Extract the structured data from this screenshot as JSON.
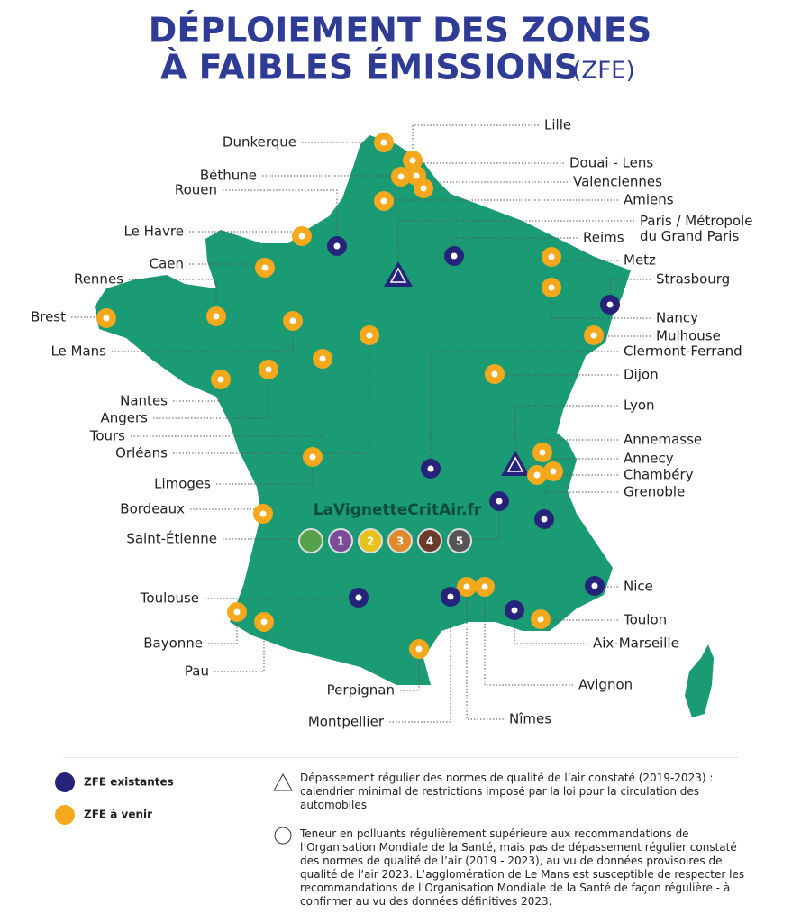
{
  "title": {
    "line1": "DÉPLOIEMENT DES ZONES",
    "line2": "À FAIBLES ÉMISSIONS",
    "suffix": "(ZFE)"
  },
  "cities": [
    "Dunkerque",
    "Lille",
    "Béthune",
    "Douai - Lens",
    "Valenciennes",
    "Rouen",
    "Amiens",
    [
      "Paris / Métropole",
      "du Grand Paris"
    ],
    "Le Havre",
    "Reims",
    "Metz",
    "Caen",
    "Rennes",
    "Strasbourg",
    "Brest",
    "Nancy",
    "Mulhouse",
    "Le Mans",
    "Clermont-Ferrand",
    "Dijon",
    "Nantes",
    "Lyon",
    "Angers",
    "Tours",
    "Annemasse",
    "Orléans",
    "Annecy",
    "Chambéry",
    "Limoges",
    "Grenoble",
    "Bordeaux",
    "Saint-Étienne",
    "Nice",
    "Toulouse",
    "Toulon",
    "Bayonne",
    "Aix-Marseille",
    "Pau",
    "Avignon",
    "Perpignan",
    "Nîmes",
    "Montpellier"
  ],
  "watermark": "LaVignetteCritAir.fr",
  "vignettes": [
    "1",
    "2",
    "3",
    "4",
    "5"
  ],
  "legend": {
    "existing": "ZFE existantes",
    "upcoming": "ZFE à venir",
    "triangle": "Dépassement régulier des normes de qualité de l’air constaté (2019-2023) : calendrier minimal de restrictions imposé par la loi pour la circulation des automobiles",
    "circle": "Teneur en polluants régulièrement supérieure aux recommandations de l’Organisation Mondiale de la Santé, mais pas de dépassement régulier constaté des normes de qualité de l’air (2019 - 2023), au vu de données provisoires de qualité de l’air 2023. L’agglomération de Le Mans est susceptible de respecter les recommandations de l’Organisation Mondiale de la Santé de façon régulière - à confirmer au vu des données définitives 2023."
  }
}
